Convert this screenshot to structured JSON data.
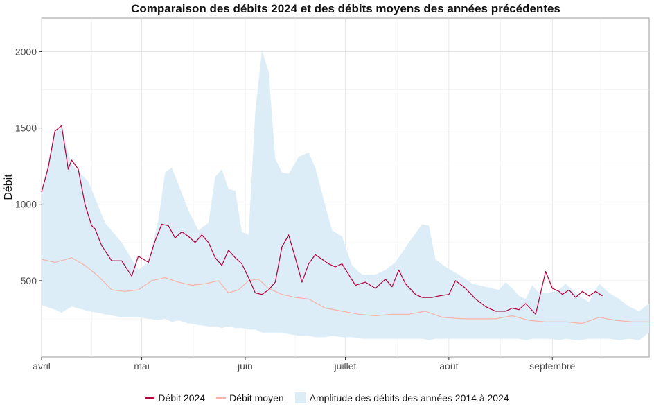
{
  "chart_data": {
    "type": "line",
    "title": "Comparaison des débits 2024 et des débits moyens des années précédentes",
    "xlabel": "",
    "ylabel": "Débit",
    "x_range": [
      "2024-04-01",
      "2024-09-30"
    ],
    "ylim": [
      0,
      2220
    ],
    "yticks": [
      500,
      1000,
      1500,
      2000
    ],
    "xtick_labels": [
      "avril",
      "mai",
      "juin",
      "juillet",
      "août",
      "septembre"
    ],
    "xtick_dates": [
      "2024-04-01",
      "2024-05-01",
      "2024-06-01",
      "2024-07-01",
      "2024-08-01",
      "2024-09-01"
    ],
    "grid": true,
    "legend_position": "bottom",
    "colors": {
      "debit_2024": "#b2003c",
      "debit_moyen": "#f6b3a6",
      "amplitude": "#dcedf8"
    },
    "series": [
      {
        "name": "Débit 2024",
        "type": "line",
        "x": [
          "2024-04-01",
          "2024-04-03",
          "2024-04-05",
          "2024-04-07",
          "2024-04-09",
          "2024-04-10",
          "2024-04-12",
          "2024-04-14",
          "2024-04-16",
          "2024-04-17",
          "2024-04-19",
          "2024-04-22",
          "2024-04-25",
          "2024-04-28",
          "2024-04-30",
          "2024-05-03",
          "2024-05-05",
          "2024-05-07",
          "2024-05-09",
          "2024-05-11",
          "2024-05-13",
          "2024-05-15",
          "2024-05-17",
          "2024-05-19",
          "2024-05-21",
          "2024-05-23",
          "2024-05-25",
          "2024-05-27",
          "2024-05-29",
          "2024-05-31",
          "2024-06-02",
          "2024-06-04",
          "2024-06-06",
          "2024-06-08",
          "2024-06-10",
          "2024-06-12",
          "2024-06-14",
          "2024-06-16",
          "2024-06-18",
          "2024-06-20",
          "2024-06-22",
          "2024-06-24",
          "2024-06-26",
          "2024-06-28",
          "2024-06-30",
          "2024-07-02",
          "2024-07-04",
          "2024-07-07",
          "2024-07-10",
          "2024-07-13",
          "2024-07-15",
          "2024-07-17",
          "2024-07-19",
          "2024-07-22",
          "2024-07-24",
          "2024-07-27",
          "2024-07-29",
          "2024-08-01",
          "2024-08-03",
          "2024-08-06",
          "2024-08-09",
          "2024-08-12",
          "2024-08-15",
          "2024-08-18",
          "2024-08-20",
          "2024-08-22",
          "2024-08-24",
          "2024-08-27",
          "2024-08-30",
          "2024-09-01",
          "2024-09-03",
          "2024-09-04",
          "2024-09-06",
          "2024-09-08",
          "2024-09-10",
          "2024-09-12",
          "2024-09-14",
          "2024-09-16"
        ],
        "y": [
          1080,
          1240,
          1480,
          1515,
          1230,
          1290,
          1230,
          1000,
          860,
          840,
          730,
          630,
          630,
          530,
          660,
          620,
          760,
          870,
          860,
          780,
          820,
          790,
          750,
          800,
          750,
          650,
          600,
          700,
          650,
          610,
          520,
          420,
          410,
          440,
          490,
          720,
          800,
          650,
          490,
          610,
          670,
          640,
          610,
          590,
          610,
          540,
          470,
          490,
          450,
          510,
          460,
          570,
          480,
          410,
          390,
          390,
          400,
          410,
          500,
          450,
          380,
          330,
          300,
          300,
          320,
          310,
          350,
          280,
          560,
          450,
          430,
          410,
          440,
          390,
          430,
          400,
          430,
          400
        ]
      },
      {
        "name": "Débit moyen",
        "type": "line",
        "x": [
          "2024-04-01",
          "2024-04-05",
          "2024-04-10",
          "2024-04-14",
          "2024-04-18",
          "2024-04-22",
          "2024-04-26",
          "2024-04-30",
          "2024-05-04",
          "2024-05-08",
          "2024-05-12",
          "2024-05-16",
          "2024-05-20",
          "2024-05-24",
          "2024-05-27",
          "2024-05-30",
          "2024-06-02",
          "2024-06-05",
          "2024-06-08",
          "2024-06-12",
          "2024-06-16",
          "2024-06-20",
          "2024-06-25",
          "2024-06-30",
          "2024-07-05",
          "2024-07-10",
          "2024-07-15",
          "2024-07-20",
          "2024-07-25",
          "2024-07-30",
          "2024-08-05",
          "2024-08-10",
          "2024-08-15",
          "2024-08-20",
          "2024-08-25",
          "2024-08-30",
          "2024-09-05",
          "2024-09-10",
          "2024-09-15",
          "2024-09-20",
          "2024-09-25",
          "2024-09-30"
        ],
        "y": [
          640,
          620,
          650,
          600,
          530,
          440,
          430,
          440,
          500,
          520,
          490,
          470,
          480,
          500,
          420,
          440,
          500,
          510,
          450,
          410,
          390,
          380,
          320,
          300,
          280,
          270,
          280,
          280,
          300,
          260,
          250,
          250,
          250,
          270,
          240,
          230,
          230,
          220,
          260,
          240,
          230,
          230
        ]
      },
      {
        "name": "Amplitude des débits des années 2014 à 2024",
        "type": "band",
        "x": [
          "2024-04-01",
          "2024-04-05",
          "2024-04-07",
          "2024-04-10",
          "2024-04-15",
          "2024-04-20",
          "2024-04-25",
          "2024-04-30",
          "2024-05-03",
          "2024-05-06",
          "2024-05-08",
          "2024-05-10",
          "2024-05-12",
          "2024-05-15",
          "2024-05-18",
          "2024-05-21",
          "2024-05-23",
          "2024-05-25",
          "2024-05-27",
          "2024-05-29",
          "2024-05-31",
          "2024-06-02",
          "2024-06-04",
          "2024-06-06",
          "2024-06-08",
          "2024-06-10",
          "2024-06-12",
          "2024-06-14",
          "2024-06-17",
          "2024-06-20",
          "2024-06-22",
          "2024-06-25",
          "2024-06-27",
          "2024-06-30",
          "2024-07-03",
          "2024-07-06",
          "2024-07-10",
          "2024-07-13",
          "2024-07-16",
          "2024-07-20",
          "2024-07-24",
          "2024-07-26",
          "2024-07-28",
          "2024-07-31",
          "2024-08-04",
          "2024-08-08",
          "2024-08-12",
          "2024-08-16",
          "2024-08-18",
          "2024-08-20",
          "2024-08-22",
          "2024-08-24",
          "2024-08-26",
          "2024-08-28",
          "2024-08-31",
          "2024-09-03",
          "2024-09-05",
          "2024-09-09",
          "2024-09-12",
          "2024-09-15",
          "2024-09-18",
          "2024-09-21",
          "2024-09-24",
          "2024-09-27",
          "2024-09-30"
        ],
        "low": [
          340,
          310,
          290,
          330,
          300,
          280,
          260,
          260,
          250,
          240,
          250,
          230,
          240,
          220,
          210,
          200,
          200,
          190,
          200,
          190,
          190,
          180,
          180,
          160,
          160,
          160,
          160,
          150,
          140,
          140,
          130,
          130,
          140,
          130,
          130,
          120,
          120,
          120,
          120,
          120,
          120,
          110,
          120,
          120,
          120,
          120,
          120,
          120,
          120,
          120,
          120,
          110,
          120,
          120,
          120,
          110,
          120,
          110,
          120,
          120,
          120,
          110,
          120,
          110,
          160
        ],
        "high": [
          1080,
          1480,
          1500,
          1260,
          1150,
          880,
          750,
          570,
          620,
          900,
          1210,
          1240,
          1130,
          960,
          830,
          880,
          1180,
          1230,
          1100,
          1090,
          820,
          800,
          1600,
          2010,
          1870,
          1300,
          1210,
          1200,
          1310,
          1340,
          1240,
          990,
          830,
          790,
          600,
          540,
          540,
          570,
          620,
          750,
          870,
          860,
          640,
          590,
          540,
          480,
          460,
          440,
          490,
          450,
          400,
          380,
          470,
          420,
          420,
          440,
          480,
          400,
          360,
          480,
          420,
          380,
          330,
          300,
          350
        ]
      }
    ]
  }
}
